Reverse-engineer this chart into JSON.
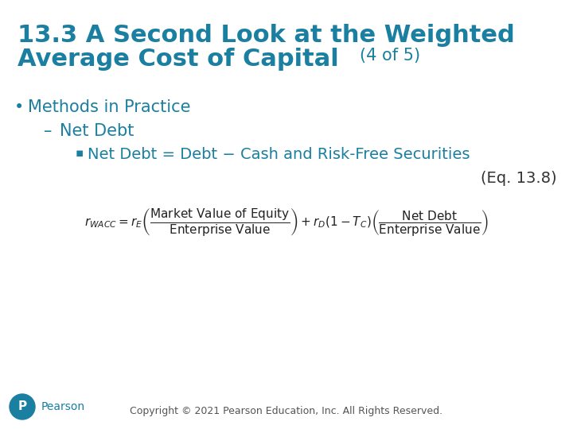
{
  "title_color": "#1a7fa0",
  "title_line1": "13.3 A Second Look at the Weighted",
  "title_line2_main": "Average Cost of Capital ",
  "title_suffix": "(4 of 5)",
  "title_fontsize": 22,
  "title_suffix_fontsize": 15,
  "bullet_color": "#1a7fa0",
  "body_text_color": "#1a7fa0",
  "background_color": "#ffffff",
  "bullet1": "Methods in Practice",
  "bullet2": "Net Debt",
  "bullet3": "Net Debt = Debt − Cash and Risk-Free Securities",
  "eq_label": "(Eq. 13.8)",
  "copyright": "Copyright © 2021 Pearson Education, Inc. All Rights Reserved.",
  "pearson_color": "#1a7fa0",
  "formula": "r_{WACC} = r_E \\left( \\dfrac{\\mathrm{Market\\ Value\\ of\\ Equity}}{\\mathrm{Enterprise\\ Value}} \\right) + r_D(1 - T_C) \\left( \\dfrac{\\mathrm{Net\\ Debt}}{\\mathrm{Enterprise\\ Value}} \\right)"
}
